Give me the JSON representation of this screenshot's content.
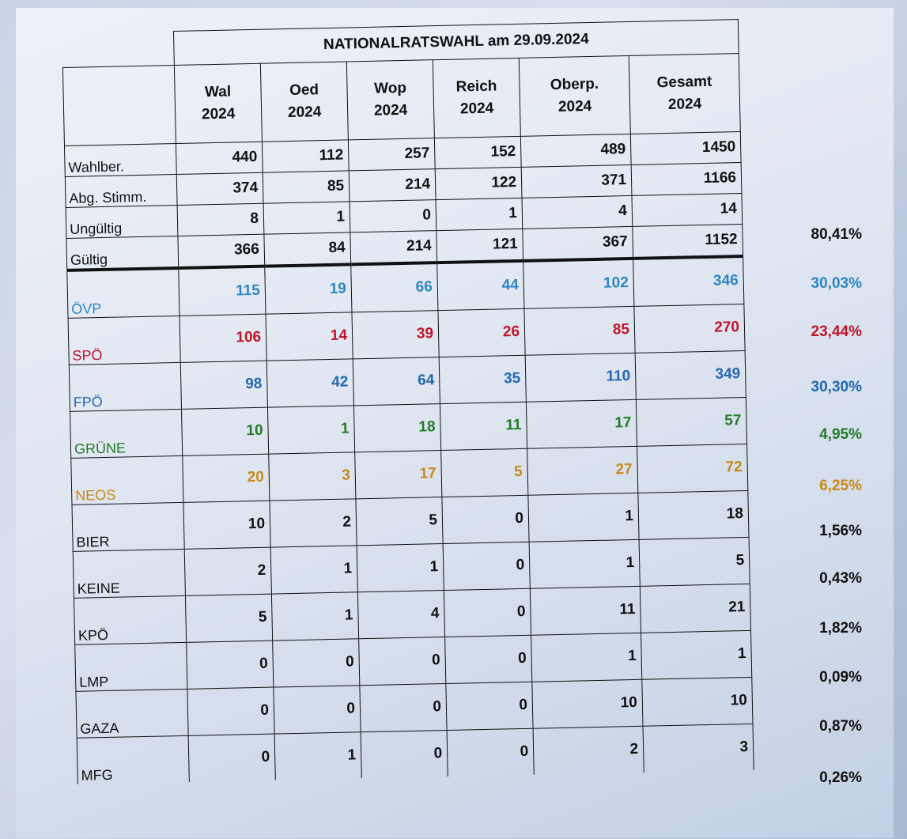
{
  "title": "NATIONALRATSWAHL am 29.09.2024",
  "columns": [
    {
      "name": "Wal",
      "year": "2024"
    },
    {
      "name": "Oed",
      "year": "2024"
    },
    {
      "name": "Wop",
      "year": "2024"
    },
    {
      "name": "Reich",
      "year": "2024"
    },
    {
      "name": "Oberp.",
      "year": "2024"
    },
    {
      "name": "Gesamt",
      "year": "2024"
    }
  ],
  "meta_rows": [
    {
      "label": "Wahlber.",
      "values": [
        "440",
        "112",
        "257",
        "152",
        "489",
        "1450"
      ],
      "pct": ""
    },
    {
      "label": "Abg. Stimm.",
      "values": [
        "374",
        "85",
        "214",
        "122",
        "371",
        "1166"
      ],
      "pct": ""
    },
    {
      "label": "Ungültig",
      "values": [
        "8",
        "1",
        "0",
        "1",
        "4",
        "14"
      ],
      "pct": ""
    },
    {
      "label": "Gültig",
      "values": [
        "366",
        "84",
        "214",
        "121",
        "367",
        "1152"
      ],
      "pct": "80,41%"
    }
  ],
  "party_rows": [
    {
      "label": "ÖVP",
      "color": "#2d86c5",
      "values": [
        "115",
        "19",
        "66",
        "44",
        "102",
        "346"
      ],
      "pct": "30,03%"
    },
    {
      "label": "SPÖ",
      "color": "#c0152a",
      "values": [
        "106",
        "14",
        "39",
        "26",
        "85",
        "270"
      ],
      "pct": "23,44%"
    },
    {
      "label": "FPÖ",
      "color": "#2368b5",
      "values": [
        "98",
        "42",
        "64",
        "35",
        "110",
        "349"
      ],
      "pct": "30,30%"
    },
    {
      "label": "GRÜNE",
      "color": "#247a2a",
      "values": [
        "10",
        "1",
        "18",
        "11",
        "17",
        "57"
      ],
      "pct": "4,95%"
    },
    {
      "label": "NEOS",
      "color": "#c98a1a",
      "values": [
        "20",
        "3",
        "17",
        "5",
        "27",
        "72"
      ],
      "pct": "6,25%"
    },
    {
      "label": "BIER",
      "color": "#111111",
      "values": [
        "10",
        "2",
        "5",
        "0",
        "1",
        "18"
      ],
      "pct": "1,56%"
    },
    {
      "label": "KEINE",
      "color": "#111111",
      "values": [
        "2",
        "1",
        "1",
        "0",
        "1",
        "5"
      ],
      "pct": "0,43%"
    },
    {
      "label": "KPÖ",
      "color": "#111111",
      "values": [
        "5",
        "1",
        "4",
        "0",
        "11",
        "21"
      ],
      "pct": "1,82%"
    },
    {
      "label": "LMP",
      "color": "#111111",
      "values": [
        "0",
        "0",
        "0",
        "0",
        "1",
        "1"
      ],
      "pct": "0,09%"
    },
    {
      "label": "GAZA",
      "color": "#111111",
      "values": [
        "0",
        "0",
        "0",
        "0",
        "10",
        "10"
      ],
      "pct": "0,87%"
    },
    {
      "label": "MFG",
      "color": "#111111",
      "values": [
        "0",
        "1",
        "0",
        "0",
        "2",
        "3"
      ],
      "pct": "0,26%"
    }
  ]
}
